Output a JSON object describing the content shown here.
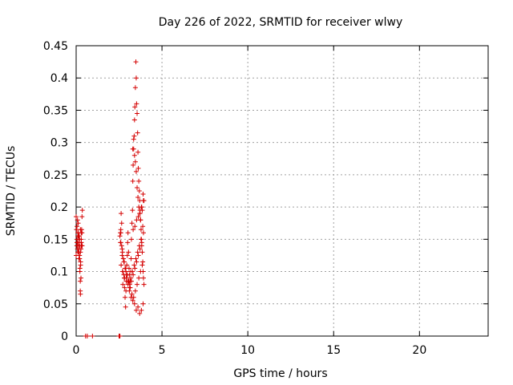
{
  "chart_data": {
    "type": "scatter",
    "title": "Day 226 of 2022, SRMTID for receiver wlwy",
    "xlabel": "GPS time / hours",
    "ylabel": "SRMTID / TECUs",
    "xlim": [
      0,
      24
    ],
    "ylim": [
      0,
      0.45
    ],
    "x_ticks": [
      0,
      5,
      10,
      15,
      20
    ],
    "x_tick_labels": [
      "0",
      "5",
      "10",
      "15",
      "20"
    ],
    "y_ticks": [
      0,
      0.05,
      0.1,
      0.15,
      0.2,
      0.25,
      0.3,
      0.35,
      0.4,
      0.45
    ],
    "y_tick_labels": [
      "0",
      "0.05",
      "0.1",
      "0.15",
      "0.2",
      "0.25",
      "0.3",
      "0.35",
      "0.4",
      "0.45"
    ],
    "grid": true,
    "marker": "+",
    "marker_color": "#d40000",
    "series": [
      {
        "x": [
          0.0,
          0.02,
          0.04,
          0.06,
          0.08,
          0.1,
          0.12,
          0.14,
          0.16,
          0.18,
          0.2,
          0.22,
          0.24,
          0.26,
          0.28,
          0.3,
          0.32,
          0.34,
          0.36,
          0.0,
          0.05,
          0.1,
          0.15,
          0.2,
          0.25,
          0.3,
          0.35,
          0.05,
          0.1,
          0.15,
          0.2,
          0.25,
          0.3,
          0.12,
          0.18,
          0.22,
          0.28,
          0.08,
          0.14,
          0.24,
          0.32,
          0.1,
          0.2,
          0.06,
          0.16,
          0.26,
          0.34,
          0.04,
          0.18,
          0.3,
          0.25,
          0.3,
          0.55,
          0.65,
          0.95,
          2.5,
          2.52,
          2.55,
          2.58,
          2.6,
          2.62,
          2.65,
          2.68,
          2.7,
          2.72,
          2.75,
          2.78,
          2.8,
          2.82,
          2.85,
          2.88,
          2.9,
          2.92,
          2.95,
          2.98,
          3.0,
          3.02,
          3.05,
          3.08,
          3.1,
          3.12,
          3.15,
          3.18,
          3.2,
          3.22,
          3.25,
          3.28,
          3.3,
          3.32,
          3.35,
          3.38,
          3.4,
          3.42,
          3.45,
          3.48,
          3.5,
          3.52,
          3.55,
          3.58,
          3.6,
          3.62,
          3.65,
          3.68,
          3.7,
          3.72,
          3.75,
          3.78,
          3.8,
          3.82,
          3.85,
          3.88,
          3.9,
          3.92,
          3.95,
          2.6,
          2.7,
          2.8,
          2.9,
          3.0,
          3.1,
          3.2,
          3.3,
          3.4,
          3.5,
          3.6,
          3.7,
          3.8,
          3.9,
          2.65,
          2.75,
          2.85,
          2.95,
          3.05,
          3.15,
          3.25,
          3.35,
          3.45,
          3.55,
          3.65,
          3.75,
          3.85,
          2.62,
          2.72,
          2.82,
          2.92,
          3.02,
          3.12,
          3.22,
          3.32,
          3.42,
          3.52,
          3.62,
          3.72,
          3.82,
          3.92,
          2.68,
          2.78,
          2.88,
          2.98,
          3.08,
          3.18,
          3.28,
          3.38,
          3.48,
          3.58,
          3.68,
          3.78,
          3.88,
          3.3,
          3.35,
          3.4,
          3.45,
          3.5,
          3.55,
          3.6,
          3.65,
          3.7,
          3.75,
          3.8,
          3.85,
          3.9,
          3.95,
          3.32,
          3.42,
          3.52,
          3.62,
          3.72,
          3.82,
          3.92,
          2.55,
          2.58,
          2.6
        ],
        "y": [
          0.185,
          0.165,
          0.15,
          0.14,
          0.135,
          0.145,
          0.16,
          0.13,
          0.12,
          0.155,
          0.14,
          0.1,
          0.085,
          0.11,
          0.135,
          0.145,
          0.165,
          0.185,
          0.195,
          0.125,
          0.17,
          0.155,
          0.13,
          0.12,
          0.165,
          0.15,
          0.14,
          0.145,
          0.13,
          0.14,
          0.15,
          0.13,
          0.16,
          0.175,
          0.15,
          0.105,
          0.09,
          0.18,
          0.155,
          0.07,
          0.14,
          0.16,
          0.125,
          0.145,
          0.135,
          0.115,
          0.16,
          0.14,
          0.12,
          0.145,
          0.065,
          0.14,
          0.0,
          0.0,
          0.0,
          0.0,
          0.0,
          0.0,
          0.145,
          0.16,
          0.19,
          0.175,
          0.135,
          0.1,
          0.08,
          0.12,
          0.095,
          0.09,
          0.075,
          0.06,
          0.045,
          0.07,
          0.09,
          0.11,
          0.125,
          0.145,
          0.16,
          0.13,
          0.105,
          0.095,
          0.08,
          0.085,
          0.1,
          0.12,
          0.15,
          0.175,
          0.195,
          0.24,
          0.265,
          0.29,
          0.31,
          0.335,
          0.355,
          0.385,
          0.425,
          0.4,
          0.36,
          0.345,
          0.315,
          0.285,
          0.26,
          0.24,
          0.225,
          0.21,
          0.195,
          0.18,
          0.165,
          0.15,
          0.14,
          0.13,
          0.115,
          0.1,
          0.09,
          0.08,
          0.145,
          0.13,
          0.115,
          0.1,
          0.085,
          0.07,
          0.06,
          0.055,
          0.05,
          0.04,
          0.045,
          0.035,
          0.04,
          0.05,
          0.14,
          0.12,
          0.105,
          0.095,
          0.085,
          0.075,
          0.065,
          0.06,
          0.07,
          0.08,
          0.09,
          0.1,
          0.11,
          0.11,
          0.1,
          0.09,
          0.085,
          0.08,
          0.075,
          0.085,
          0.095,
          0.105,
          0.115,
          0.125,
          0.135,
          0.145,
          0.16,
          0.125,
          0.115,
          0.105,
          0.095,
          0.085,
          0.09,
          0.1,
          0.11,
          0.12,
          0.13,
          0.14,
          0.15,
          0.17,
          0.29,
          0.305,
          0.28,
          0.27,
          0.255,
          0.23,
          0.215,
          0.2,
          0.19,
          0.18,
          0.2,
          0.195,
          0.22,
          0.21,
          0.165,
          0.17,
          0.18,
          0.185,
          0.19,
          0.2,
          0.21,
          0.155,
          0.16,
          0.165
        ]
      }
    ]
  }
}
